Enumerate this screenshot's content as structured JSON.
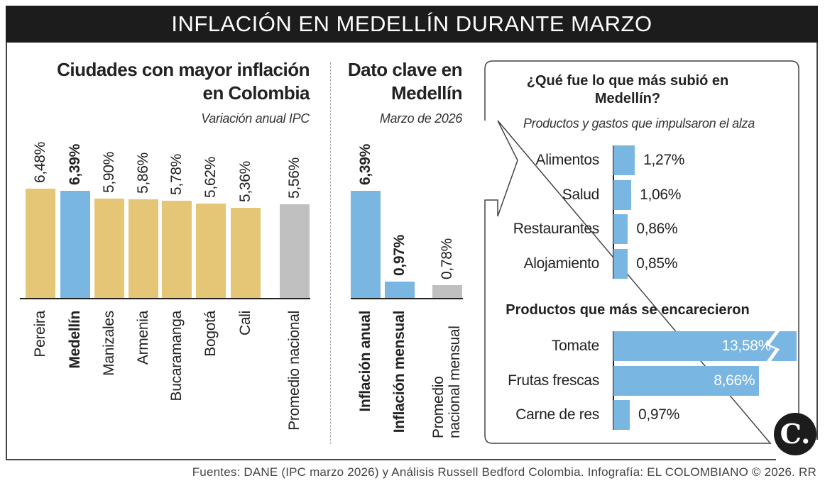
{
  "title": "INFLACIÓN EN MEDELLÍN DURANTE MARZO",
  "colors": {
    "gold": "#e5c677",
    "blue": "#7ab6e2",
    "gray": "#c0c0c0",
    "dark": "#1c1c1c"
  },
  "chart_data": [
    {
      "type": "bar",
      "title": "Ciudades con mayor inflación en Colombia",
      "subtitle": "Variación anual IPC",
      "categories": [
        "Pereira",
        "Medellín",
        "Manizales",
        "Armenia",
        "Bucaramanga",
        "Bogotá",
        "Cali",
        "Promedio nacional"
      ],
      "values": [
        6.48,
        6.39,
        5.9,
        5.86,
        5.78,
        5.62,
        5.36,
        5.56
      ],
      "labels": [
        "6,48%",
        "6,39%",
        "5,90%",
        "5,86%",
        "5,78%",
        "5,62%",
        "5,36%",
        "5,56%"
      ],
      "highlight": [
        false,
        true,
        false,
        false,
        false,
        false,
        false,
        false
      ],
      "bar_colors": [
        "gold",
        "blue",
        "gold",
        "gold",
        "gold",
        "gold",
        "gold",
        "gray"
      ],
      "unit": "%"
    },
    {
      "type": "bar",
      "title": "Dato clave en Medellín",
      "subtitle": "Marzo de 2026",
      "categories": [
        "Inflación anual",
        "Inflación mensual",
        "Promedio nacional mensual"
      ],
      "values": [
        6.39,
        0.97,
        0.78
      ],
      "labels": [
        "6,39%",
        "0,97%",
        "0,78%"
      ],
      "highlight": [
        true,
        true,
        false
      ],
      "bar_colors": [
        "blue",
        "blue",
        "gray"
      ],
      "unit": "%"
    },
    {
      "type": "bar",
      "orientation": "horizontal",
      "title": "¿Qué fue lo que más subió en Medellín?",
      "subtitle": "Productos y gastos que impulsaron el alza",
      "categories": [
        "Alimentos",
        "Salud",
        "Restaurantes",
        "Alojamiento"
      ],
      "values": [
        1.27,
        1.06,
        0.86,
        0.85
      ],
      "labels": [
        "1,27%",
        "1,06%",
        "0,86%",
        "0,85%"
      ],
      "unit": "%"
    },
    {
      "type": "bar",
      "orientation": "horizontal",
      "title": "Productos que más se encarecieron",
      "categories": [
        "Tomate",
        "Frutas frescas",
        "Carne de res"
      ],
      "values": [
        13.58,
        8.66,
        0.97
      ],
      "labels": [
        "13,58%",
        "8,66%",
        "0,97%"
      ],
      "broken_axis": [
        true,
        false,
        false
      ],
      "unit": "%"
    }
  ],
  "footer": "Fuentes: DANE (IPC marzo 2026) y Análisis Russell Bedford Colombia. Infografía: EL COLOMBIANO © 2026. RR",
  "logo": "C."
}
